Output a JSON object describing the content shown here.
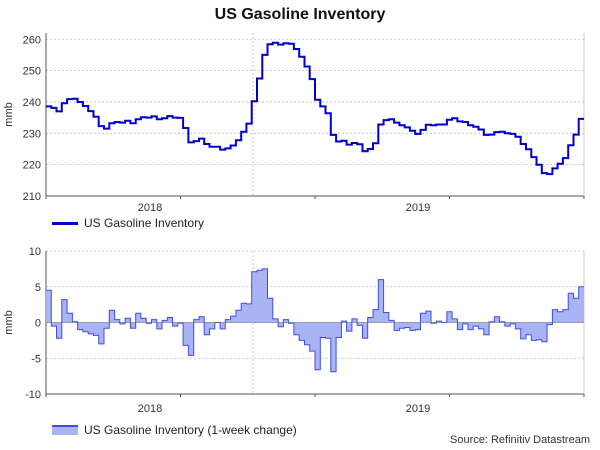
{
  "title": "US Gasoline Inventory",
  "source": "Source: Refinitiv Datastream",
  "colors": {
    "line": "#0000cc",
    "area_fill": "#aab4f5",
    "area_stroke": "#3b4fe6",
    "grid": "#bfbfbf"
  },
  "chart_data": [
    {
      "type": "line",
      "series": [
        {
          "name": "US Gasoline Inventory",
          "values": [
            238.6,
            238.1,
            237.0,
            239.6,
            240.9,
            241.0,
            240.0,
            238.7,
            237.1,
            235.3,
            232.3,
            231.5,
            233.2,
            233.6,
            233.4,
            234.0,
            233.2,
            234.5,
            235.1,
            235.0,
            235.4,
            234.5,
            234.8,
            235.5,
            235.0,
            234.9,
            231.7,
            227.1,
            227.5,
            228.3,
            226.6,
            225.7,
            225.7,
            224.8,
            225.2,
            226.1,
            227.8,
            230.5,
            233.1,
            240.2,
            247.5,
            255.0,
            258.4,
            258.9,
            258.3,
            258.7,
            258.6,
            256.9,
            254.4,
            251.3,
            247.3,
            240.7,
            238.6,
            236.4,
            229.5,
            227.4,
            227.6,
            226.4,
            226.9,
            226.5,
            224.3,
            225.0,
            226.8,
            232.8,
            234.2,
            234.5,
            233.4,
            232.6,
            231.9,
            230.8,
            229.8,
            231.1,
            232.7,
            232.6,
            232.8,
            232.8,
            234.3,
            234.8,
            233.8,
            233.6,
            232.6,
            232.1,
            231.2,
            229.5,
            229.6,
            230.4,
            230.5,
            230.0,
            229.8,
            228.9,
            226.6,
            224.9,
            222.4,
            220.0,
            217.3,
            217.0,
            218.8,
            220.3,
            222.1,
            226.2,
            229.6,
            234.6
          ]
        }
      ],
      "x_labels": [
        "2018",
        "2019"
      ],
      "ylabel": "mmb",
      "ylim": [
        210,
        262
      ],
      "yticks": [
        210,
        220,
        230,
        240,
        250,
        260
      ],
      "grid": true,
      "legend_position": "bottom-left"
    },
    {
      "type": "area",
      "series": [
        {
          "name": "US Gasoline Inventory (1-week change)",
          "values": [
            4.5,
            -0.5,
            -2.2,
            3.2,
            1.3,
            0.1,
            -1.0,
            -1.3,
            -1.6,
            -1.8,
            -3.0,
            -0.8,
            1.7,
            0.4,
            -0.2,
            0.6,
            -0.8,
            1.3,
            0.6,
            -0.1,
            0.4,
            -0.9,
            0.3,
            0.7,
            -0.5,
            -0.1,
            -3.2,
            -4.6,
            0.4,
            0.8,
            -1.7,
            -0.9,
            0.0,
            -0.9,
            0.4,
            0.9,
            1.7,
            2.7,
            2.6,
            7.1,
            7.3,
            7.5,
            3.4,
            0.5,
            -0.6,
            0.4,
            -0.1,
            -1.7,
            -2.5,
            -3.1,
            -4.0,
            -6.6,
            -2.1,
            -2.2,
            -6.9,
            -2.1,
            0.2,
            -1.2,
            0.5,
            -0.4,
            -2.2,
            0.7,
            1.8,
            6.0,
            1.4,
            0.3,
            -1.1,
            -0.8,
            -0.7,
            -1.1,
            -1.0,
            1.3,
            1.6,
            -0.1,
            0.2,
            0.0,
            1.5,
            0.5,
            -1.0,
            -0.2,
            -1.0,
            -0.5,
            -0.9,
            -1.7,
            0.1,
            0.8,
            0.1,
            -0.5,
            -0.2,
            -0.9,
            -2.3,
            -1.7,
            -2.5,
            -2.4,
            -2.7,
            -0.3,
            1.8,
            1.5,
            1.8,
            4.1,
            3.4,
            5.0
          ]
        }
      ],
      "x_labels": [
        "2018",
        "2019"
      ],
      "ylabel": "mmb",
      "ylim": [
        -10,
        10
      ],
      "yticks": [
        -10,
        -5,
        0,
        5,
        10
      ],
      "grid": true,
      "legend_position": "bottom-left"
    }
  ]
}
